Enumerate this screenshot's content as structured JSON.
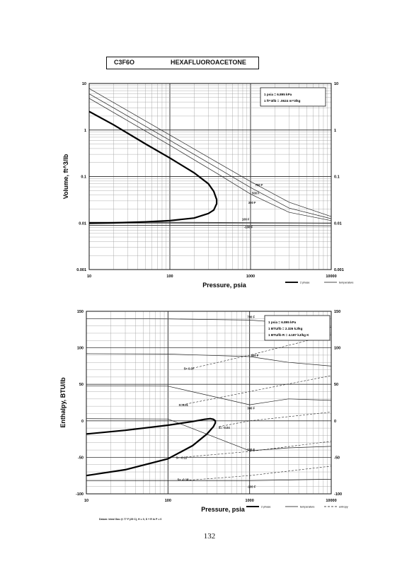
{
  "header": {
    "formula": "C3F6O",
    "name": "HEXAFLUOROACETONE"
  },
  "page_number": "132",
  "datum_note": "Datum: Ideal Gas @ 77 F (25 C),  H = 0,  S + R ln P = 0",
  "chart_data": [
    {
      "type": "line",
      "xscale": "log",
      "yscale": "log",
      "xlim": [
        10,
        10000
      ],
      "ylim": [
        0.001,
        10
      ],
      "xlabel": "Pressure,  psia",
      "ylabel": "Volume,  ft^3/lb",
      "x_ticks": [
        "10",
        "100",
        "1000",
        "10000"
      ],
      "y_ticks": [
        "0.001",
        "0.01",
        "0.1",
        "1",
        "10"
      ],
      "y_ticks_right": [
        "0.001",
        "0.01",
        "0.1",
        "1",
        "10"
      ],
      "info_box": [
        "1 psia  =  6.895 kPa",
        "1 ft^3/lb  =  .0624 m^3/kg"
      ],
      "legend": [
        "2 phase",
        "temperature"
      ],
      "two_phase_dome": {
        "x": [
          10,
          20,
          50,
          100,
          200,
          300,
          350,
          380,
          380,
          350,
          300,
          200,
          100,
          50,
          20,
          10
        ],
        "y": [
          2.5,
          1.3,
          0.5,
          0.25,
          0.12,
          0.07,
          0.048,
          0.032,
          0.026,
          0.019,
          0.016,
          0.0128,
          0.0113,
          0.0106,
          0.0101,
          0.0099
        ]
      },
      "series": [
        {
          "name": "700 F",
          "x": [
            10,
            100,
            400,
            1000,
            3000,
            10000
          ],
          "y": [
            7.8,
            0.78,
            0.195,
            0.078,
            0.028,
            0.0138
          ]
        },
        {
          "name": "500 F",
          "x": [
            10,
            100,
            400,
            1000,
            3000,
            10000
          ],
          "y": [
            6.0,
            0.6,
            0.148,
            0.058,
            0.021,
            0.0124
          ]
        },
        {
          "name": "300 F",
          "x": [
            10,
            100,
            400,
            1000,
            3000,
            10000
          ],
          "y": [
            4.8,
            0.47,
            0.112,
            0.042,
            0.017,
            0.0113
          ]
        },
        {
          "name": "100 F",
          "x": [
            10,
            100,
            400,
            1000,
            3000,
            10000
          ],
          "y": [
            0.0104,
            0.0104,
            0.0103,
            0.0102,
            0.0101,
            0.0099
          ]
        },
        {
          "name": "-100 F",
          "x": [
            10,
            100,
            400,
            1000,
            3000,
            10000
          ],
          "y": [
            0.0089,
            0.0089,
            0.0089,
            0.0088,
            0.0088,
            0.0087
          ]
        }
      ],
      "curve_labels": [
        {
          "text": "700 F",
          "x": 1100,
          "y": 0.062
        },
        {
          "text": "500 F",
          "x": 1000,
          "y": 0.042
        },
        {
          "text": "300 F",
          "x": 900,
          "y": 0.026
        },
        {
          "text": "100 F",
          "x": 750,
          "y": 0.0115
        },
        {
          "text": "-100 F",
          "x": 800,
          "y": 0.0078
        }
      ]
    },
    {
      "type": "line",
      "xscale": "log",
      "yscale": "linear",
      "xlim": [
        10,
        10000
      ],
      "ylim": [
        -100,
        150
      ],
      "xlabel": "Pressure,  psia",
      "ylabel": "Enthalpy,  BTU/lb",
      "x_ticks": [
        "10",
        "100",
        "1000",
        "10000"
      ],
      "y_ticks": [
        "-100",
        "-50",
        "0",
        "50",
        "100",
        "150"
      ],
      "y_ticks_right": [
        "-100",
        "-50",
        "0",
        "50",
        "100",
        "150"
      ],
      "info_box": [
        "1 psia  =  6.895 kPa",
        "1 BTU/lb  =  2.326 kJ/kg",
        "1 BTU/lb R  =  4.187 kJ/kg K"
      ],
      "legend": [
        "2 phase",
        "temperature",
        "entropy"
      ],
      "two_phase_dome": {
        "x": [
          10,
          30,
          100,
          200,
          280,
          330,
          360,
          380,
          380,
          360,
          300,
          200,
          100,
          30,
          10
        ],
        "y": [
          -18,
          -13,
          -6,
          -1,
          2,
          3,
          2,
          0,
          -3,
          -8,
          -18,
          -34,
          -52,
          -67,
          -75
        ]
      },
      "series": [
        {
          "name": "700 F",
          "x": [
            10,
            100,
            1000,
            3000,
            10000
          ],
          "y": [
            140,
            139.5,
            138,
            134,
            128
          ]
        },
        {
          "name": "500 F",
          "x": [
            10,
            100,
            1000,
            3000,
            10000
          ],
          "y": [
            92,
            91.5,
            88,
            80,
            75
          ]
        },
        {
          "name": "300 F",
          "x": [
            10,
            100,
            1000,
            3000,
            10000
          ],
          "y": [
            48,
            47.5,
            22,
            30,
            28
          ]
        },
        {
          "name": "100 F",
          "x": [
            10,
            100,
            1000,
            3000,
            10000
          ],
          "y": [
            3,
            2.5,
            -41,
            -37,
            -35
          ]
        },
        {
          "name": "-100 F",
          "x": [
            10,
            100,
            1000,
            3000,
            10000
          ],
          "y": [
            -82,
            -82,
            -82,
            -81,
            -80
          ]
        }
      ],
      "entropy_lines": [
        {
          "name": "S= 0.07",
          "x": [
            200,
            1000,
            10000
          ],
          "y": [
            72,
            90,
            118
          ]
        },
        {
          "name": "S=0.01",
          "x": [
            150,
            1000,
            10000
          ],
          "y": [
            22,
            40,
            62
          ]
        },
        {
          "name": "S= -0.04",
          "x": [
            420,
            1000,
            10000
          ],
          "y": [
            -8,
            0,
            12
          ]
        },
        {
          "name": "S= -0.11",
          "x": [
            150,
            1000,
            10000
          ],
          "y": [
            -50,
            -42,
            -28
          ]
        },
        {
          "name": "S= -0.18",
          "x": [
            150,
            1000,
            10000
          ],
          "y": [
            -82,
            -75,
            -62
          ]
        }
      ],
      "curve_labels": [
        {
          "text": "700 F",
          "x": 900,
          "y": 141
        },
        {
          "text": "500 F",
          "x": 1000,
          "y": 88
        },
        {
          "text": "300 F",
          "x": 900,
          "y": 16
        },
        {
          "text": "100 F",
          "x": 900,
          "y": -41
        },
        {
          "text": "-100 F",
          "x": 900,
          "y": -92
        },
        {
          "text": "S= 0.07",
          "x": 150,
          "y": 70
        },
        {
          "text": "S=0.01",
          "x": 130,
          "y": 20
        },
        {
          "text": "S= -0.04",
          "x": 400,
          "y": -11
        },
        {
          "text": "S= -0.11",
          "x": 120,
          "y": -52
        },
        {
          "text": "S= -0.18",
          "x": 125,
          "y": -82
        }
      ]
    }
  ]
}
